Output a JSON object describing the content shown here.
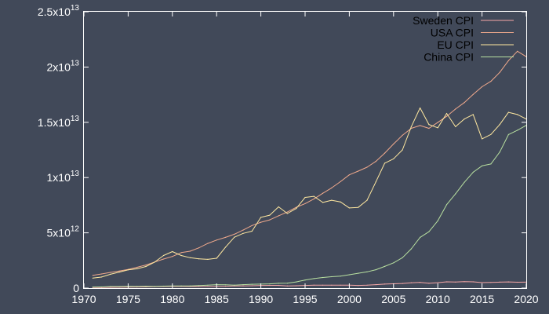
{
  "chart_data": {
    "type": "line",
    "title": "",
    "xlabel": "",
    "ylabel": "",
    "xlim": [
      1970,
      2020
    ],
    "ylim": [
      0,
      25000000000000
    ],
    "grid": false,
    "legend_position": "top-right",
    "x_ticks": [
      {
        "value": 1970,
        "label": "1970"
      },
      {
        "value": 1975,
        "label": "1975"
      },
      {
        "value": 1980,
        "label": "1980"
      },
      {
        "value": 1985,
        "label": "1985"
      },
      {
        "value": 1990,
        "label": "1990"
      },
      {
        "value": 1995,
        "label": "1995"
      },
      {
        "value": 2000,
        "label": "2000"
      },
      {
        "value": 2005,
        "label": "2005"
      },
      {
        "value": 2010,
        "label": "2010"
      },
      {
        "value": 2015,
        "label": "2015"
      },
      {
        "value": 2020,
        "label": "2020"
      }
    ],
    "y_ticks": [
      {
        "value": 0,
        "mantissa": "0",
        "exponent": ""
      },
      {
        "value": 5000000000000,
        "mantissa": "5x10",
        "exponent": "12"
      },
      {
        "value": 10000000000000,
        "mantissa": "1x10",
        "exponent": "13"
      },
      {
        "value": 15000000000000,
        "mantissa": "1.5x10",
        "exponent": "13"
      },
      {
        "value": 20000000000000,
        "mantissa": "2x10",
        "exponent": "13"
      },
      {
        "value": 25000000000000,
        "mantissa": "2.5x10",
        "exponent": "13"
      }
    ],
    "x": [
      1971,
      1972,
      1973,
      1974,
      1975,
      1976,
      1977,
      1978,
      1979,
      1980,
      1981,
      1982,
      1983,
      1984,
      1985,
      1986,
      1987,
      1988,
      1989,
      1990,
      1991,
      1992,
      1993,
      1994,
      1995,
      1996,
      1997,
      1998,
      1999,
      2000,
      2001,
      2002,
      2003,
      2004,
      2005,
      2006,
      2007,
      2008,
      2009,
      2010,
      2011,
      2012,
      2013,
      2014,
      2015,
      2016,
      2017,
      2018,
      2019,
      2020
    ],
    "series": [
      {
        "name": "Sweden CPI",
        "color": "#f7a8a8",
        "values": [
          0.05,
          0.06,
          0.07,
          0.08,
          0.09,
          0.1,
          0.11,
          0.12,
          0.14,
          0.15,
          0.15,
          0.14,
          0.14,
          0.14,
          0.15,
          0.17,
          0.19,
          0.2,
          0.21,
          0.24,
          0.25,
          0.25,
          0.2,
          0.21,
          0.24,
          0.27,
          0.26,
          0.26,
          0.26,
          0.26,
          0.24,
          0.26,
          0.31,
          0.36,
          0.39,
          0.42,
          0.48,
          0.52,
          0.43,
          0.49,
          0.57,
          0.55,
          0.58,
          0.57,
          0.5,
          0.51,
          0.54,
          0.56,
          0.53,
          0.54
        ]
      },
      {
        "name": "USA CPI",
        "color": "#f0a98c",
        "values": [
          1.16,
          1.28,
          1.42,
          1.55,
          1.69,
          1.88,
          2.09,
          2.36,
          2.63,
          2.86,
          3.21,
          3.34,
          3.64,
          4.04,
          4.35,
          4.59,
          4.87,
          5.25,
          5.66,
          5.96,
          6.17,
          6.54,
          6.88,
          7.31,
          7.64,
          8.07,
          8.58,
          9.06,
          9.63,
          10.25,
          10.58,
          10.94,
          11.46,
          12.21,
          13.04,
          13.82,
          14.45,
          14.71,
          14.45,
          14.99,
          15.54,
          16.2,
          16.78,
          17.52,
          18.22,
          18.71,
          19.52,
          20.58,
          21.43,
          20.94
        ]
      },
      {
        "name": "EU CPI",
        "color": "#ffe8a0",
        "values": [
          0.9,
          1.0,
          1.25,
          1.45,
          1.65,
          1.75,
          1.95,
          2.35,
          2.95,
          3.3,
          2.95,
          2.75,
          2.65,
          2.6,
          2.7,
          3.7,
          4.6,
          4.95,
          5.15,
          6.4,
          6.6,
          7.35,
          6.75,
          7.2,
          8.2,
          8.3,
          7.75,
          7.95,
          7.8,
          7.25,
          7.3,
          7.95,
          9.6,
          11.3,
          11.7,
          12.5,
          14.6,
          16.3,
          14.8,
          14.5,
          15.8,
          14.6,
          15.3,
          15.7,
          13.5,
          13.9,
          14.8,
          15.9,
          15.7,
          15.3
        ]
      },
      {
        "name": "China CPI",
        "color": "#b8e0a0",
        "values": [
          0.1,
          0.11,
          0.14,
          0.14,
          0.16,
          0.15,
          0.17,
          0.15,
          0.18,
          0.19,
          0.2,
          0.2,
          0.23,
          0.26,
          0.31,
          0.3,
          0.27,
          0.31,
          0.35,
          0.36,
          0.38,
          0.43,
          0.44,
          0.56,
          0.73,
          0.86,
          0.96,
          1.03,
          1.09,
          1.21,
          1.34,
          1.47,
          1.66,
          1.96,
          2.29,
          2.75,
          3.55,
          4.59,
          5.1,
          6.09,
          7.55,
          8.53,
          9.57,
          10.48,
          11.06,
          11.23,
          12.31,
          13.89,
          14.28,
          14.72
        ]
      }
    ]
  }
}
